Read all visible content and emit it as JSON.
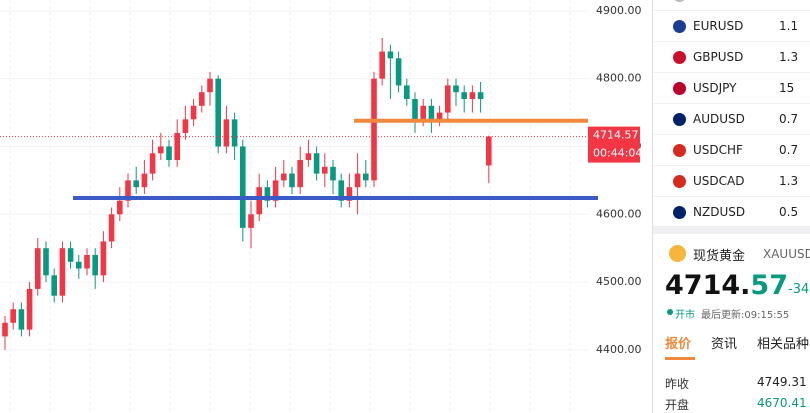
{
  "chart_data": {
    "type": "candlestick",
    "open": [
      4420,
      4440,
      4460,
      4430,
      4490,
      4550,
      4510,
      4480,
      4550,
      4530,
      4520,
      4540,
      4510,
      4560,
      4600,
      4620,
      4650,
      4640,
      4660,
      4690,
      4700,
      4680,
      4720,
      4740,
      4760,
      4780,
      4800,
      4700,
      4740,
      4700,
      4580,
      4600,
      4640,
      4620,
      4650,
      4660,
      4640,
      4680,
      4690,
      4660,
      4670,
      4650,
      4620,
      4640,
      4660,
      4650,
      4800,
      4840,
      4830,
      4790,
      4770,
      4740,
      4760,
      4740,
      4750,
      4790,
      4780,
      4770,
      4780,
      4672
    ],
    "high": [
      4450,
      4470,
      4470,
      4500,
      4565,
      4560,
      4520,
      4560,
      4560,
      4540,
      4550,
      4550,
      4575,
      4610,
      4640,
      4660,
      4670,
      4680,
      4710,
      4720,
      4710,
      4740,
      4760,
      4770,
      4790,
      4810,
      4805,
      4760,
      4750,
      4710,
      4620,
      4660,
      4650,
      4670,
      4680,
      4670,
      4700,
      4710,
      4700,
      4690,
      4680,
      4660,
      4660,
      4690,
      4680,
      4810,
      4860,
      4850,
      4840,
      4800,
      4780,
      4770,
      4770,
      4760,
      4800,
      4800,
      4790,
      4790,
      4795,
      4716
    ],
    "low": [
      4400,
      4430,
      4420,
      4420,
      4480,
      4500,
      4470,
      4470,
      4520,
      4505,
      4510,
      4490,
      4500,
      4550,
      4590,
      4610,
      4630,
      4630,
      4650,
      4680,
      4670,
      4670,
      4710,
      4730,
      4750,
      4760,
      4690,
      4690,
      4680,
      4560,
      4550,
      4590,
      4610,
      4610,
      4640,
      4630,
      4630,
      4670,
      4650,
      4640,
      4630,
      4610,
      4610,
      4600,
      4640,
      4640,
      4790,
      4770,
      4780,
      4760,
      4720,
      4730,
      4720,
      4730,
      4740,
      4760,
      4750,
      4750,
      4750,
      4646
    ],
    "close": [
      4440,
      4460,
      4430,
      4490,
      4550,
      4510,
      4480,
      4550,
      4530,
      4520,
      4540,
      4510,
      4560,
      4600,
      4620,
      4650,
      4640,
      4660,
      4690,
      4700,
      4680,
      4720,
      4740,
      4760,
      4780,
      4800,
      4700,
      4740,
      4700,
      4580,
      4600,
      4640,
      4620,
      4650,
      4660,
      4640,
      4680,
      4690,
      4660,
      4670,
      4650,
      4620,
      4640,
      4660,
      4650,
      4800,
      4840,
      4830,
      4790,
      4770,
      4740,
      4760,
      4740,
      4750,
      4790,
      4780,
      4770,
      4780,
      4770,
      4714.57
    ],
    "up_color": "#f23645",
    "down_color": "#089981",
    "ylim": [
      4307,
      4916
    ],
    "yticks": [
      {
        "value": 4400,
        "label": "4400.00"
      },
      {
        "value": 4500,
        "label": "4500.00"
      },
      {
        "value": 4600,
        "label": "4600.00"
      },
      {
        "value": 4700,
        "label": "4700.00"
      },
      {
        "value": 4800,
        "label": "4800.00"
      },
      {
        "value": 4900,
        "label": "4900.00"
      }
    ],
    "hlines": [
      {
        "value": 4624,
        "color": "#3a5bc7"
      },
      {
        "value": 4738,
        "color": "#f0883e"
      }
    ],
    "last_price": 4714.57,
    "countdown": "00:44:04"
  },
  "watchlist": [
    {
      "symbol": "EURUSD",
      "price": "1.1"
    },
    {
      "symbol": "GBPUSD",
      "price": "1.3"
    },
    {
      "symbol": "USDJPY",
      "price": "15"
    },
    {
      "symbol": "AUDUSD",
      "price": "0.7"
    },
    {
      "symbol": "USDCHF",
      "price": "0.7"
    },
    {
      "symbol": "USDCAD",
      "price": "1.3"
    },
    {
      "symbol": "NZDUSD",
      "price": "0.5"
    }
  ],
  "detail": {
    "name": "现货黄金",
    "code": "XAUUSD",
    "price_int": "4714.",
    "price_dec": "57",
    "change": "-34.",
    "status": "开市",
    "updated": "最后更新:09:15:55",
    "tabs": [
      "报价",
      "资讯",
      "相关品种"
    ],
    "rows": [
      [
        "昨收",
        "4749.31"
      ],
      [
        "开盘",
        "4670.41"
      ]
    ]
  }
}
